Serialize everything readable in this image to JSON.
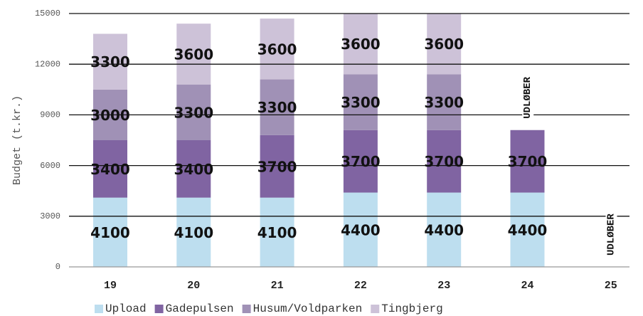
{
  "chart_data": {
    "type": "stacked-bar",
    "y_label": "Budget (t.kr.)",
    "categories": [
      "19",
      "20",
      "21",
      "22",
      "23",
      "24",
      "25"
    ],
    "series": [
      {
        "name": "Upload",
        "color": "#bddeef",
        "values": [
          4100,
          4100,
          4100,
          4400,
          4400,
          4400,
          null
        ]
      },
      {
        "name": "Gadepulsen",
        "color": "#8064a2",
        "values": [
          3400,
          3400,
          3700,
          3700,
          3700,
          3700,
          null
        ]
      },
      {
        "name": "Husum/Voldparken",
        "color": "#a091b6",
        "values": [
          3000,
          3300,
          3300,
          3300,
          3300,
          null,
          null
        ]
      },
      {
        "name": "Tingbjerg",
        "color": "#cdc2d8",
        "values": [
          3300,
          3600,
          3600,
          3600,
          3600,
          null,
          null
        ]
      }
    ],
    "annotations": [
      {
        "text": "UDLØBER",
        "category": "24"
      },
      {
        "text": "UDLØBER",
        "category": "25"
      }
    ],
    "ylim": [
      0,
      15000
    ],
    "yticks": [
      0,
      3000,
      6000,
      9000,
      12000,
      15000
    ],
    "grid": true,
    "legend": "bottom"
  }
}
